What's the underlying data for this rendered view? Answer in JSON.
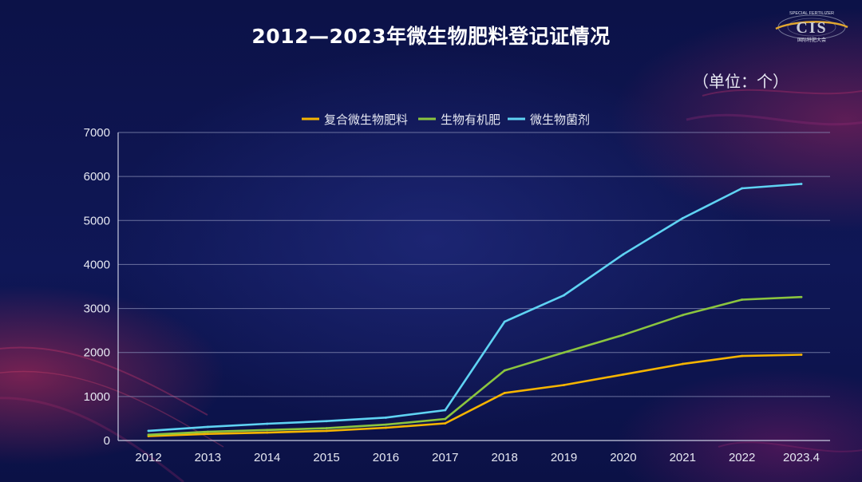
{
  "title": "2012—2023年微生物肥料登记证情况",
  "unit_label": "（单位：个）",
  "logo": {
    "top_text": "SPECIAL FERTILIZER",
    "main_text": "CIS",
    "sub_text": "国际特肥大会"
  },
  "colors": {
    "background": "#0d1450",
    "grid": "#8a90b8",
    "axis_text": "#e6e8f2"
  },
  "chart_data": {
    "type": "line",
    "title": "2012—2023年微生物肥料登记证情况",
    "categories": [
      "2012",
      "2013",
      "2014",
      "2015",
      "2016",
      "2017",
      "2018",
      "2019",
      "2020",
      "2021",
      "2022",
      "2023.4"
    ],
    "ylim": [
      0,
      7000
    ],
    "yticks": [
      0,
      1000,
      2000,
      3000,
      4000,
      5000,
      6000,
      7000
    ],
    "grid": true,
    "legend_position": "top-center",
    "series": [
      {
        "name": "复合微生物肥料",
        "color": "#f5b400",
        "values": [
          100,
          150,
          180,
          220,
          290,
          390,
          1080,
          1260,
          1500,
          1740,
          1920,
          1950
        ]
      },
      {
        "name": "生物有机肥",
        "color": "#8bc53f",
        "values": [
          130,
          200,
          240,
          280,
          360,
          490,
          1590,
          2000,
          2400,
          2850,
          3200,
          3260
        ]
      },
      {
        "name": "微生物菌剂",
        "color": "#5fd3f3",
        "values": [
          220,
          310,
          380,
          440,
          520,
          690,
          2700,
          3300,
          4230,
          5050,
          5730,
          5830
        ]
      }
    ]
  }
}
